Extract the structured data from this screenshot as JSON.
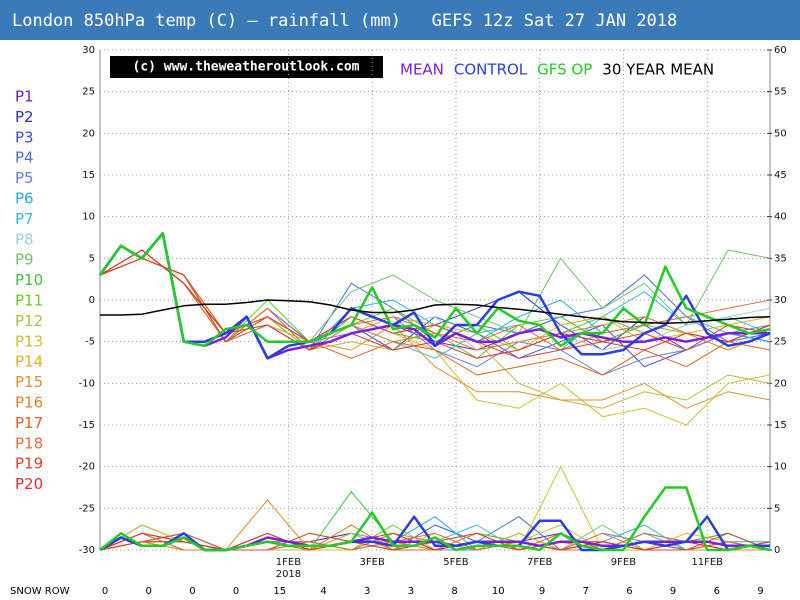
{
  "chart_data": {
    "type": "line",
    "title": "London 850hPa temp (C) — rainfall (mm)   GEFS 12z Sat 27 JAN 2018",
    "watermark": "(c) www.theweatheroutlook.com",
    "x": [
      0,
      0.5,
      1,
      1.5,
      2,
      2.5,
      3,
      3.5,
      4,
      4.5,
      5,
      5.5,
      6,
      6.5,
      7,
      7.5,
      8,
      8.5,
      9,
      9.5,
      10,
      10.5,
      11,
      11.5,
      12,
      12.5,
      13,
      13.5,
      14,
      14.5,
      15,
      15.5,
      16
    ],
    "xlim": [
      0,
      16
    ],
    "xticks": [
      {
        "value": 4.5,
        "label": "1FEB"
      },
      {
        "value": 6.5,
        "label": "3FEB"
      },
      {
        "value": 8.5,
        "label": "5FEB"
      },
      {
        "value": 10.5,
        "label": "7FEB"
      },
      {
        "value": 12.5,
        "label": "9FEB"
      },
      {
        "value": 14.5,
        "label": "11FEB"
      }
    ],
    "x_tick_year": "2018",
    "ylim": [
      -30,
      30
    ],
    "yticks": [
      -30,
      -25,
      -20,
      -15,
      -10,
      -5,
      0,
      5,
      10,
      15,
      20,
      25,
      30
    ],
    "y2lim": [
      0,
      60
    ],
    "y2ticks": [
      0,
      5,
      10,
      15,
      20,
      25,
      30,
      35,
      40,
      45,
      50,
      55,
      60
    ],
    "grid": true,
    "series": [
      {
        "name": "MEAN",
        "color": "#7a1fe0",
        "values": [
          3,
          6.5,
          5,
          8,
          -5,
          -5.5,
          -4.5,
          -2,
          -7,
          -6,
          -5.5,
          -5,
          -4,
          -3.5,
          -3,
          -3.5,
          -5.5,
          -4,
          -5,
          -5,
          -4,
          -3.5,
          -4.5,
          -4,
          -4.5,
          -5,
          -5,
          -4.5,
          -5,
          -4.5,
          -4,
          -4,
          -4
        ]
      },
      {
        "name": "CONTROL",
        "color": "#2a3de0",
        "values": [
          3,
          6.5,
          5,
          8,
          -5,
          -5,
          -4,
          -2,
          -7,
          -5.5,
          -5,
          -4,
          -1,
          -2,
          -3,
          -1.5,
          -5.5,
          -3,
          -3,
          0,
          1,
          0.5,
          -4,
          -6.5,
          -6.5,
          -6,
          -4,
          -3,
          0.5,
          -4,
          -5.5,
          -5,
          -4
        ]
      },
      {
        "name": "GFS OP",
        "color": "#22cc22",
        "values": [
          3,
          6.5,
          5,
          8,
          -5,
          -5.5,
          -3.5,
          -3,
          -5,
          -5,
          -5,
          -4,
          -3,
          1.5,
          -3.5,
          -3,
          -4.5,
          -1,
          -4,
          -1,
          -2.5,
          -3,
          -5.5,
          -4,
          -4,
          -1,
          -3,
          4,
          -1,
          -2,
          -3,
          -4,
          -3.5
        ]
      },
      {
        "name": "30 YEAR MEAN",
        "color": "#000000",
        "values": [
          -1.8,
          -1.8,
          -1.7,
          -1.2,
          -0.7,
          -0.5,
          -0.5,
          -0.3,
          0,
          -0.1,
          -0.2,
          -0.6,
          -1.2,
          -1.5,
          -1.5,
          -1.2,
          -0.6,
          -0.5,
          -0.6,
          -0.9,
          -1.1,
          -1.4,
          -1.7,
          -2,
          -2.3,
          -2.6,
          -2.7,
          -2.8,
          -2.7,
          -2.5,
          -2.3,
          -2.1,
          -2
        ]
      },
      {
        "color": "#7a1fe0",
        "axis": "y2",
        "values": [
          0,
          1.5,
          0.5,
          0.5,
          1.5,
          0,
          0,
          0.5,
          1.5,
          1,
          0.5,
          0.5,
          1,
          1.5,
          1,
          1,
          1,
          0.5,
          1,
          1,
          1,
          0.5,
          1,
          1,
          0.5,
          0.5,
          1,
          1,
          1,
          1,
          0.5,
          0.5,
          0.5
        ]
      },
      {
        "color": "#2a3de0",
        "axis": "y2",
        "values": [
          0,
          1.5,
          0.5,
          0.5,
          2,
          0,
          0,
          0.5,
          1,
          0.5,
          0.5,
          0.5,
          1,
          1,
          0.5,
          4,
          0.5,
          0.5,
          1,
          0.5,
          0.5,
          3.5,
          3.5,
          0,
          0,
          0.5,
          1,
          0.5,
          1,
          4,
          0,
          0.5,
          0.5
        ]
      },
      {
        "color": "#22cc22",
        "axis": "y2",
        "values": [
          0,
          2,
          0.5,
          0.5,
          1.5,
          0,
          0,
          0.5,
          1,
          0.5,
          0.5,
          0.5,
          1,
          4.5,
          0.5,
          0.5,
          1.5,
          0,
          0.5,
          0.5,
          0.5,
          0,
          2,
          0.5,
          0,
          0,
          4,
          7.5,
          7.5,
          0,
          0,
          0.5,
          0
        ]
      }
    ],
    "members": {
      "x": [
        0,
        1,
        2,
        3,
        4,
        5,
        6,
        7,
        8,
        9,
        10,
        11,
        12,
        13,
        14,
        15,
        16
      ],
      "series": [
        {
          "name": "P1",
          "color": "#6a1fc0",
          "values": [
            3,
            5,
            3,
            -5,
            -3,
            -6,
            -4,
            -3,
            -5,
            -6,
            -4,
            -2,
            -5,
            -3,
            -6,
            -4,
            -5
          ],
          "rain": [
            0,
            1,
            2,
            0,
            1,
            0,
            0,
            1,
            0,
            2,
            1,
            0,
            1,
            0,
            0,
            1,
            0
          ]
        },
        {
          "name": "P2",
          "color": "#3030c0",
          "values": [
            3,
            6,
            2,
            -4,
            -2,
            -5,
            -2,
            -4,
            -3,
            -1,
            1,
            -3,
            -6,
            -2,
            -4,
            -5,
            -3
          ],
          "rain": [
            0,
            2,
            1,
            0,
            0,
            1,
            2,
            0,
            1,
            0,
            1,
            2,
            0,
            1,
            0,
            0,
            1
          ]
        },
        {
          "name": "P3",
          "color": "#3850d0",
          "values": [
            3,
            5,
            3,
            -5,
            -1,
            -5,
            -3,
            -6,
            -2,
            -4,
            -7,
            -5,
            -3,
            -8,
            -6,
            -4,
            -5
          ],
          "rain": [
            0,
            1,
            1,
            0,
            2,
            0,
            1,
            0,
            3,
            1,
            0,
            1,
            0,
            2,
            1,
            0,
            0
          ]
        },
        {
          "name": "P4",
          "color": "#5070d0",
          "values": [
            3,
            6,
            2,
            -4,
            -2,
            -6,
            2,
            -1,
            -5,
            -3,
            -4,
            -2,
            -1,
            3,
            -2,
            -5,
            -4
          ],
          "rain": [
            0,
            2,
            0,
            0,
            1,
            1,
            0,
            2,
            0,
            1,
            4,
            0,
            1,
            0,
            1,
            2,
            0
          ]
        },
        {
          "name": "P5",
          "color": "#6080e0",
          "values": [
            3,
            5,
            3,
            -5,
            -1,
            -5,
            -4,
            -2,
            -6,
            -8,
            -5,
            -6,
            -9,
            -7,
            -6,
            -4,
            -3
          ],
          "rain": [
            0,
            1,
            2,
            0,
            1,
            0,
            2,
            1,
            0,
            0,
            1,
            0,
            2,
            1,
            0,
            1,
            0
          ]
        },
        {
          "name": "P6",
          "color": "#20b0e0",
          "values": [
            3,
            6,
            2,
            -5,
            -3,
            -6,
            -1,
            0,
            -3,
            -5,
            -2,
            0,
            -4,
            -3,
            -2,
            -4,
            -5
          ],
          "rain": [
            0,
            3,
            1,
            0,
            0,
            1,
            0,
            1,
            4,
            0,
            2,
            0,
            1,
            3,
            0,
            1,
            1
          ]
        },
        {
          "name": "P7",
          "color": "#30c0d0",
          "values": [
            3,
            5,
            3,
            -4,
            -2,
            -5,
            -3,
            -5,
            -7,
            -4,
            -3,
            -6,
            -2,
            1,
            -3,
            -2,
            -4
          ],
          "rain": [
            0,
            1,
            0,
            0,
            2,
            0,
            1,
            0,
            1,
            3,
            0,
            1,
            0,
            2,
            0,
            1,
            0
          ]
        },
        {
          "name": "P8",
          "color": "#a0d0d0",
          "values": [
            3,
            6,
            2,
            -5,
            -1,
            -6,
            -4,
            -3,
            -2,
            -6,
            -5,
            -4,
            -6,
            -5,
            -3,
            -2,
            -1
          ],
          "rain": [
            0,
            2,
            1,
            0,
            1,
            0,
            0,
            2,
            0,
            1,
            0,
            1,
            0,
            1,
            1,
            0,
            1
          ]
        },
        {
          "name": "P9",
          "color": "#70c070",
          "values": [
            3,
            5,
            3,
            -5,
            -3,
            -5,
            1,
            3,
            0,
            -2,
            -4,
            5,
            -1,
            2,
            -3,
            6,
            5
          ],
          "rain": [
            0,
            1,
            1,
            0,
            0,
            2,
            1,
            0,
            1,
            0,
            2,
            0,
            3,
            0,
            1,
            0,
            0
          ]
        },
        {
          "name": "P10",
          "color": "#40c040",
          "values": [
            3,
            6,
            2,
            -4,
            -2,
            -6,
            -2,
            -4,
            -5,
            -3,
            -6,
            -4,
            -2,
            -4,
            -6,
            -3,
            -4
          ],
          "rain": [
            0,
            2,
            0,
            0,
            1,
            0,
            7,
            1,
            0,
            1,
            0,
            1,
            0,
            0,
            1,
            2,
            0
          ]
        },
        {
          "name": "P11",
          "color": "#60d020",
          "values": [
            3,
            5,
            3,
            -5,
            0,
            -5,
            -3,
            -1,
            -4,
            -7,
            -3,
            -2,
            -5,
            -3,
            -4,
            -5,
            -3
          ],
          "rain": [
            0,
            1,
            2,
            0,
            1,
            1,
            0,
            3,
            0,
            2,
            1,
            0,
            1,
            0,
            0,
            1,
            0
          ]
        },
        {
          "name": "P12",
          "color": "#b0c040",
          "values": [
            3,
            6,
            2,
            -5,
            -2,
            -6,
            -5,
            -6,
            -3,
            -5,
            -10,
            -12,
            -13,
            -11,
            -12,
            -9,
            -10
          ],
          "rain": [
            0,
            2,
            1,
            0,
            0,
            0,
            1,
            0,
            2,
            0,
            1,
            3,
            0,
            0,
            1,
            0,
            1
          ]
        },
        {
          "name": "P13",
          "color": "#d0c030",
          "values": [
            3,
            5,
            3,
            -4,
            -3,
            -5,
            -2,
            -4,
            -6,
            -12,
            -13,
            -10,
            -14,
            -13,
            -15,
            -10,
            -9
          ],
          "rain": [
            0,
            1,
            1,
            0,
            2,
            0,
            0,
            1,
            0,
            1,
            0,
            10,
            0,
            1,
            0,
            0,
            0
          ]
        },
        {
          "name": "P14",
          "color": "#e0b020",
          "values": [
            3,
            6,
            2,
            -5,
            -1,
            -6,
            -4,
            -2,
            -3,
            -4,
            -6,
            -3,
            -2,
            -5,
            -4,
            -3,
            -2
          ],
          "rain": [
            0,
            3,
            1,
            0,
            1,
            0,
            2,
            0,
            1,
            0,
            2,
            0,
            1,
            0,
            2,
            1,
            0
          ]
        },
        {
          "name": "P15",
          "color": "#e09030",
          "values": [
            3,
            5,
            3,
            -4,
            -2,
            -5,
            -6,
            -3,
            -8,
            -11,
            -11,
            -12,
            -12,
            -10,
            -13,
            -11,
            -12
          ],
          "rain": [
            0,
            1,
            0,
            0,
            6,
            0,
            1,
            1,
            0,
            2,
            0,
            1,
            0,
            1,
            0,
            0,
            1
          ]
        },
        {
          "name": "P16",
          "color": "#e08030",
          "values": [
            3,
            6,
            2,
            -5,
            -3,
            -6,
            -3,
            -5,
            -4,
            -6,
            -5,
            -4,
            -3,
            -2,
            -4,
            -6,
            -4
          ],
          "rain": [
            0,
            2,
            1,
            0,
            0,
            1,
            0,
            2,
            1,
            0,
            1,
            0,
            2,
            0,
            1,
            0,
            0
          ]
        },
        {
          "name": "P17",
          "color": "#e06020",
          "values": [
            3,
            5,
            3,
            -4,
            -2,
            -5,
            -7,
            -5,
            -6,
            -9,
            -8,
            -7,
            -9,
            -6,
            -8,
            -5,
            -6
          ],
          "rain": [
            0,
            1,
            2,
            0,
            1,
            0,
            3,
            0,
            0,
            1,
            0,
            2,
            0,
            1,
            0,
            1,
            0
          ]
        },
        {
          "name": "P18",
          "color": "#e07040",
          "values": [
            3,
            6,
            2,
            -5,
            -1,
            -6,
            -3,
            -2,
            -4,
            -5,
            -3,
            -6,
            -4,
            -3,
            -2,
            -1,
            0
          ],
          "rain": [
            0,
            2,
            0,
            0,
            1,
            1,
            0,
            1,
            2,
            0,
            1,
            0,
            0,
            2,
            1,
            0,
            1
          ]
        },
        {
          "name": "P19",
          "color": "#e04030",
          "values": [
            3,
            5,
            3,
            -5,
            -2,
            -5,
            -2,
            -4,
            -3,
            -5,
            -7,
            -6,
            -5,
            -4,
            -6,
            -3,
            -4
          ],
          "rain": [
            0,
            1,
            1,
            0,
            0,
            2,
            1,
            0,
            1,
            2,
            0,
            1,
            1,
            0,
            0,
            2,
            0
          ]
        },
        {
          "name": "P20",
          "color": "#e03030",
          "values": [
            3,
            6,
            2,
            -4,
            -3,
            -6,
            -4,
            -6,
            -5,
            -7,
            -6,
            -4,
            -5,
            -6,
            -4,
            -5,
            -3
          ],
          "rain": [
            0,
            2,
            1,
            0,
            2,
            0,
            1,
            2,
            0,
            1,
            1,
            0,
            1,
            0,
            1,
            0,
            1
          ]
        }
      ]
    },
    "snow_row": {
      "label": "SNOW ROW",
      "values": [
        0,
        0,
        0,
        0,
        15,
        4,
        3,
        3,
        8,
        10,
        9,
        7,
        6,
        9,
        6,
        9
      ]
    }
  }
}
